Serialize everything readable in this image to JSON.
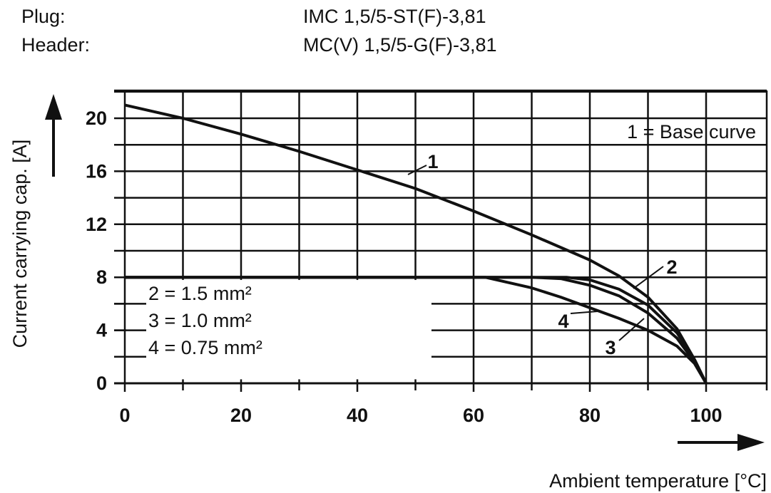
{
  "header": {
    "plug_label": "Plug:",
    "plug_value": "IMC 1,5/5-ST(F)-3,81",
    "header_label": "Header:",
    "header_value": "MC(V) 1,5/5-G(F)-3,81"
  },
  "chart_data": {
    "type": "line",
    "xlabel": "Ambient temperature [°C]",
    "ylabel": "Current carrying cap. [A]",
    "xlim": [
      0,
      100
    ],
    "ylim": [
      0,
      22
    ],
    "x_ticks": [
      0,
      20,
      40,
      60,
      80,
      100
    ],
    "y_ticks": [
      0,
      4,
      8,
      12,
      16,
      20
    ],
    "grid": true,
    "legend_top": "1 = Base curve",
    "legend_bottom": [
      "2 = 1.5 mm²",
      "3 = 1.0 mm²",
      "4 = 0.75 mm²"
    ],
    "series": [
      {
        "name": "1",
        "points": [
          [
            0,
            21
          ],
          [
            10,
            20
          ],
          [
            20,
            18.8
          ],
          [
            30,
            17.5
          ],
          [
            40,
            16.1
          ],
          [
            50,
            14.7
          ],
          [
            60,
            13
          ],
          [
            70,
            11.2
          ],
          [
            80,
            9.3
          ],
          [
            85,
            8.1
          ],
          [
            90,
            6.5
          ],
          [
            95,
            4.1
          ],
          [
            98,
            1.8
          ],
          [
            100,
            0
          ]
        ]
      },
      {
        "name": "2",
        "points": [
          [
            0,
            8
          ],
          [
            70,
            8
          ],
          [
            76,
            8
          ],
          [
            80,
            7.8
          ],
          [
            85,
            7.1
          ],
          [
            90,
            5.9
          ],
          [
            95,
            3.8
          ],
          [
            98,
            1.8
          ],
          [
            100,
            0
          ]
        ]
      },
      {
        "name": "3",
        "points": [
          [
            0,
            8
          ],
          [
            70,
            8
          ],
          [
            75,
            7.9
          ],
          [
            80,
            7.4
          ],
          [
            85,
            6.6
          ],
          [
            90,
            5.3
          ],
          [
            95,
            3.4
          ],
          [
            98,
            1.6
          ],
          [
            100,
            0
          ]
        ]
      },
      {
        "name": "4",
        "points": [
          [
            0,
            8
          ],
          [
            62,
            8
          ],
          [
            70,
            7.2
          ],
          [
            75,
            6.5
          ],
          [
            80,
            5.7
          ],
          [
            85,
            4.9
          ],
          [
            90,
            4
          ],
          [
            95,
            2.8
          ],
          [
            98,
            1.5
          ],
          [
            100,
            0
          ]
        ]
      }
    ],
    "curve_labels": [
      "1",
      "2",
      "3",
      "4"
    ]
  }
}
